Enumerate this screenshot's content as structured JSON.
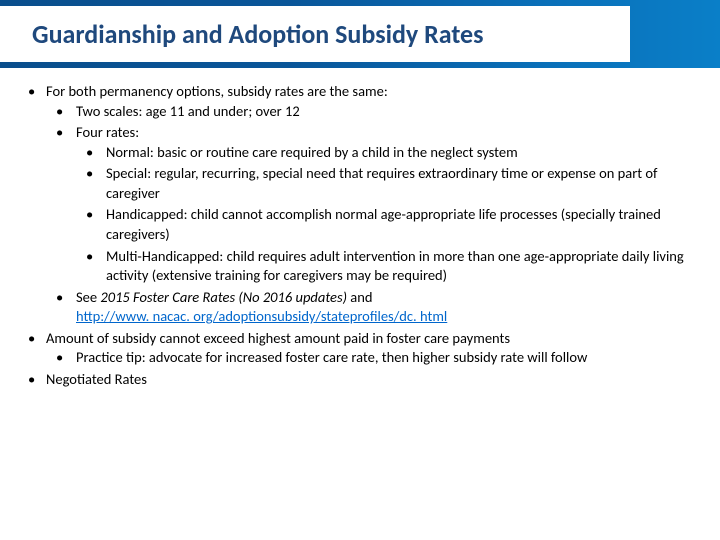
{
  "title": "Guardianship and Adoption Subsidy Rates",
  "colors": {
    "title_text": "#1f497d",
    "band_gradient_start": "#0a4e8c",
    "band_gradient_end": "#0a7fc8",
    "body_text": "#000000",
    "link": "#0066cc",
    "background": "#ffffff"
  },
  "typography": {
    "title_fontsize": 26,
    "body_fontsize": 14.5,
    "font_family": "Calibri"
  },
  "bullets": {
    "b1": {
      "text": "For both permanency options, subsidy rates are the same:",
      "children": {
        "c1": "Two scales: age 11 and under; over 12",
        "c2": {
          "text": "Four rates:",
          "children": {
            "r1": "Normal: basic or routine care required by a child in the neglect system",
            "r2": "Special: regular, recurring, special need that requires extraordinary time or expense on part of caregiver",
            "r3": "Handicapped: child cannot accomplish normal age-appropriate life processes (specially trained caregivers)",
            "r4": "Multi-Handicapped: child requires adult intervention in more than one age-appropriate daily living activity (extensive training for caregivers may be required)"
          }
        },
        "c3_prefix": "See ",
        "c3_italic": "2015 Foster Care Rates (No 2016 updates)",
        "c3_mid": " and ",
        "c3_link": "http://www. nacac. org/adoptionsubsidy/stateprofiles/dc. html"
      }
    },
    "b2": {
      "text": "Amount of subsidy cannot exceed highest amount paid in foster care payments",
      "children": {
        "p1": "Practice tip: advocate for increased foster care rate, then higher subsidy rate will follow"
      }
    },
    "b3": "Negotiated Rates"
  }
}
